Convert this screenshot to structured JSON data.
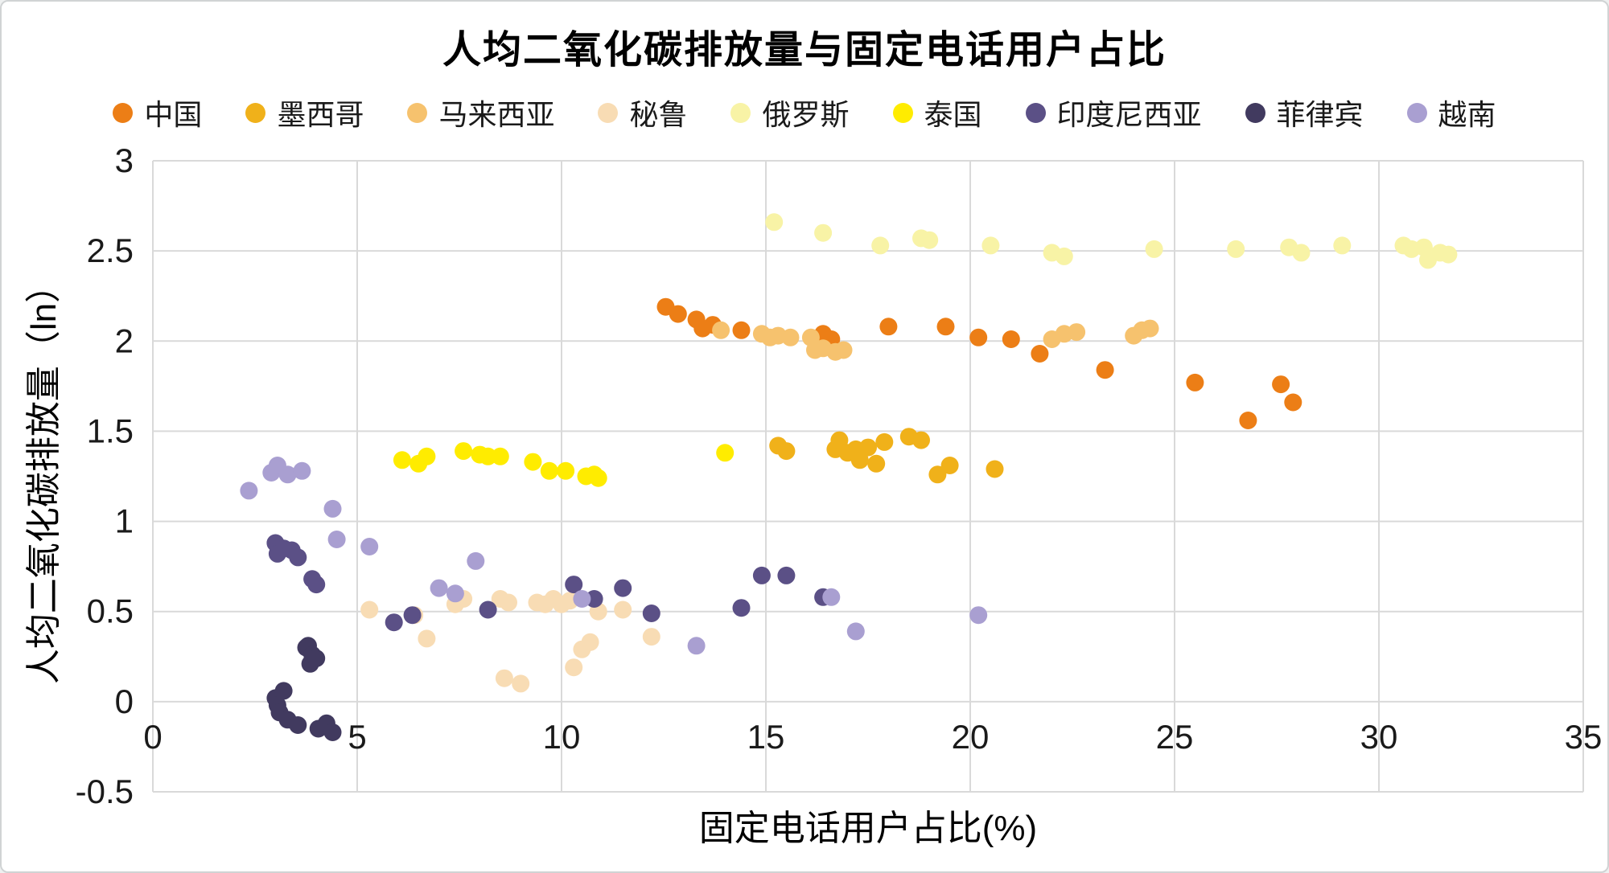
{
  "chart_data": {
    "type": "scatter",
    "title": "人均二氧化碳排放量与固定电话用户占比",
    "xlabel": "固定电话用户占比(%)",
    "ylabel": "人均二氧化碳排放量（ln）",
    "xlim": [
      0,
      35
    ],
    "ylim": [
      -0.5,
      3
    ],
    "xticks": [
      0,
      5,
      10,
      15,
      20,
      25,
      30,
      35
    ],
    "yticks": [
      -0.5,
      0,
      0.5,
      1,
      1.5,
      2,
      2.5,
      3
    ],
    "grid": true,
    "grid_color": "#D9D9D9",
    "legend_position": "top",
    "marker_radius": 11,
    "series": [
      {
        "name": "中国",
        "color": "#EC7E16",
        "points": [
          [
            12.55,
            2.19
          ],
          [
            12.85,
            2.15
          ],
          [
            13.3,
            2.12
          ],
          [
            13.45,
            2.07
          ],
          [
            13.7,
            2.09
          ],
          [
            14.4,
            2.06
          ],
          [
            16.4,
            2.04
          ],
          [
            16.6,
            2.01
          ],
          [
            18.0,
            2.08
          ],
          [
            19.4,
            2.08
          ],
          [
            20.2,
            2.02
          ],
          [
            21.0,
            2.01
          ],
          [
            21.7,
            1.93
          ],
          [
            23.3,
            1.84
          ],
          [
            25.5,
            1.77
          ],
          [
            26.8,
            1.56
          ],
          [
            27.6,
            1.76
          ],
          [
            27.9,
            1.66
          ]
        ]
      },
      {
        "name": "墨西哥",
        "color": "#F0B11A",
        "points": [
          [
            15.3,
            1.42
          ],
          [
            15.5,
            1.39
          ],
          [
            16.7,
            1.4
          ],
          [
            16.8,
            1.45
          ],
          [
            17.0,
            1.38
          ],
          [
            17.2,
            1.4
          ],
          [
            17.3,
            1.34
          ],
          [
            17.5,
            1.41
          ],
          [
            17.7,
            1.32
          ],
          [
            17.9,
            1.44
          ],
          [
            18.5,
            1.47
          ],
          [
            18.8,
            1.45
          ],
          [
            19.2,
            1.26
          ],
          [
            19.5,
            1.31
          ],
          [
            20.6,
            1.29
          ]
        ]
      },
      {
        "name": "马来西亚",
        "color": "#F6C26E",
        "points": [
          [
            13.9,
            2.06
          ],
          [
            14.9,
            2.04
          ],
          [
            15.1,
            2.02
          ],
          [
            15.3,
            2.03
          ],
          [
            15.6,
            2.02
          ],
          [
            16.1,
            2.02
          ],
          [
            16.2,
            1.95
          ],
          [
            16.4,
            1.96
          ],
          [
            16.7,
            1.94
          ],
          [
            16.9,
            1.95
          ],
          [
            22.0,
            2.01
          ],
          [
            22.3,
            2.04
          ],
          [
            22.6,
            2.05
          ],
          [
            24.0,
            2.03
          ],
          [
            24.2,
            2.06
          ],
          [
            24.4,
            2.07
          ]
        ]
      },
      {
        "name": "秘鲁",
        "color": "#F8DCB4",
        "points": [
          [
            5.3,
            0.51
          ],
          [
            6.4,
            0.48
          ],
          [
            6.7,
            0.35
          ],
          [
            7.4,
            0.54
          ],
          [
            7.6,
            0.57
          ],
          [
            8.5,
            0.57
          ],
          [
            8.7,
            0.55
          ],
          [
            8.6,
            0.13
          ],
          [
            9.0,
            0.1
          ],
          [
            9.4,
            0.55
          ],
          [
            9.6,
            0.54
          ],
          [
            9.8,
            0.57
          ],
          [
            10.0,
            0.54
          ],
          [
            10.2,
            0.56
          ],
          [
            10.3,
            0.19
          ],
          [
            10.5,
            0.29
          ],
          [
            10.7,
            0.33
          ],
          [
            10.9,
            0.5
          ],
          [
            11.5,
            0.51
          ],
          [
            12.2,
            0.36
          ]
        ]
      },
      {
        "name": "俄罗斯",
        "color": "#F8F3A6",
        "points": [
          [
            15.2,
            2.66
          ],
          [
            16.4,
            2.6
          ],
          [
            17.8,
            2.53
          ],
          [
            18.8,
            2.57
          ],
          [
            19.0,
            2.56
          ],
          [
            20.5,
            2.53
          ],
          [
            22.0,
            2.49
          ],
          [
            22.3,
            2.47
          ],
          [
            24.5,
            2.51
          ],
          [
            26.5,
            2.51
          ],
          [
            27.8,
            2.52
          ],
          [
            28.1,
            2.49
          ],
          [
            29.1,
            2.53
          ],
          [
            30.6,
            2.53
          ],
          [
            30.8,
            2.51
          ],
          [
            31.1,
            2.52
          ],
          [
            31.2,
            2.45
          ],
          [
            31.5,
            2.49
          ],
          [
            31.7,
            2.48
          ]
        ]
      },
      {
        "name": "泰国",
        "color": "#FFEC00",
        "points": [
          [
            6.1,
            1.34
          ],
          [
            6.5,
            1.32
          ],
          [
            6.7,
            1.36
          ],
          [
            7.6,
            1.39
          ],
          [
            8.0,
            1.37
          ],
          [
            8.2,
            1.36
          ],
          [
            8.5,
            1.36
          ],
          [
            9.3,
            1.33
          ],
          [
            9.7,
            1.28
          ],
          [
            10.1,
            1.28
          ],
          [
            10.6,
            1.25
          ],
          [
            10.8,
            1.26
          ],
          [
            10.9,
            1.24
          ],
          [
            14.0,
            1.38
          ]
        ]
      },
      {
        "name": "印度尼西亚",
        "color": "#5B5086",
        "points": [
          [
            3.0,
            0.88
          ],
          [
            3.05,
            0.82
          ],
          [
            3.2,
            0.85
          ],
          [
            3.4,
            0.84
          ],
          [
            3.55,
            0.8
          ],
          [
            3.9,
            0.68
          ],
          [
            4.0,
            0.65
          ],
          [
            5.9,
            0.44
          ],
          [
            6.35,
            0.48
          ],
          [
            8.2,
            0.51
          ],
          [
            10.3,
            0.65
          ],
          [
            10.8,
            0.57
          ],
          [
            11.5,
            0.63
          ],
          [
            12.2,
            0.49
          ],
          [
            14.4,
            0.52
          ],
          [
            14.9,
            0.7
          ],
          [
            15.5,
            0.7
          ],
          [
            16.4,
            0.58
          ]
        ]
      },
      {
        "name": "菲律宾",
        "color": "#413A5F",
        "points": [
          [
            3.0,
            0.02
          ],
          [
            3.05,
            -0.02
          ],
          [
            3.1,
            -0.06
          ],
          [
            3.2,
            0.06
          ],
          [
            3.3,
            -0.1
          ],
          [
            3.55,
            -0.13
          ],
          [
            3.75,
            0.3
          ],
          [
            3.8,
            0.31
          ],
          [
            3.85,
            0.21
          ],
          [
            3.9,
            0.26
          ],
          [
            4.0,
            0.24
          ],
          [
            4.05,
            -0.15
          ],
          [
            4.25,
            -0.12
          ],
          [
            4.4,
            -0.17
          ]
        ]
      },
      {
        "name": "越南",
        "color": "#A99FD1",
        "points": [
          [
            2.35,
            1.17
          ],
          [
            2.9,
            1.27
          ],
          [
            3.05,
            1.31
          ],
          [
            3.3,
            1.26
          ],
          [
            3.65,
            1.28
          ],
          [
            4.4,
            1.07
          ],
          [
            4.5,
            0.9
          ],
          [
            5.3,
            0.86
          ],
          [
            7.0,
            0.63
          ],
          [
            7.4,
            0.6
          ],
          [
            7.9,
            0.78
          ],
          [
            10.5,
            0.57
          ],
          [
            13.3,
            0.31
          ],
          [
            16.6,
            0.58
          ],
          [
            17.2,
            0.39
          ],
          [
            20.2,
            0.48
          ]
        ]
      }
    ]
  }
}
